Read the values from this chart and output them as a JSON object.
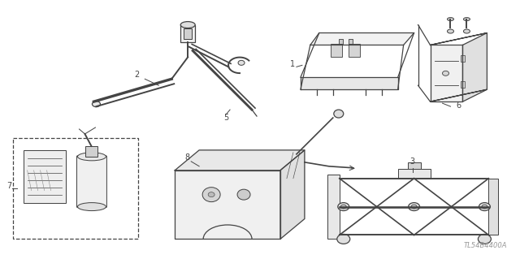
{
  "bg_color": "#ffffff",
  "line_color": "#444444",
  "fig_width": 6.4,
  "fig_height": 3.19,
  "dpi": 100,
  "watermark": "TL54B4400A"
}
